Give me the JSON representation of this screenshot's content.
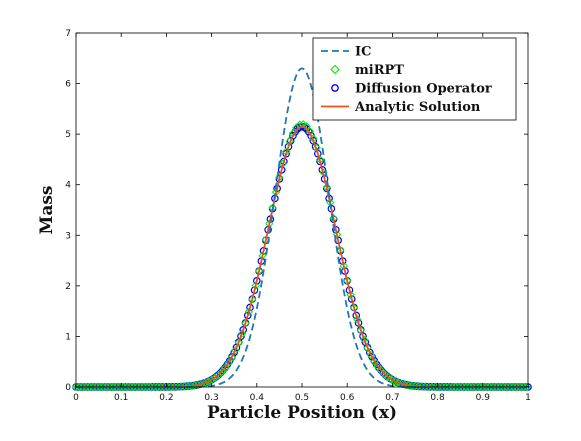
{
  "chart_data": {
    "type": "line",
    "xlabel": "Particle Position (x)",
    "ylabel": "Mass",
    "xlim": [
      0,
      1
    ],
    "ylim": [
      0,
      7
    ],
    "xticks": [
      "0",
      "0.1",
      "0.2",
      "0.3",
      "0.4",
      "0.5",
      "0.6",
      "0.7",
      "0.8",
      "0.9",
      "1"
    ],
    "yticks": [
      "0",
      "1",
      "2",
      "3",
      "4",
      "5",
      "6",
      "7"
    ],
    "grid": false,
    "legend_position": "top-right",
    "series": [
      {
        "name": "IC",
        "style": "dashed-line",
        "color": "#1f77b4",
        "peak_x": 0.5,
        "peak_y": 6.3,
        "x": [
          0.0,
          0.2,
          0.25,
          0.3,
          0.35,
          0.4,
          0.45,
          0.5,
          0.55,
          0.6,
          0.65,
          0.7,
          0.75,
          0.8,
          1.0
        ],
        "y": [
          0.0,
          0.0,
          0.001,
          0.03,
          0.3,
          1.55,
          4.3,
          6.3,
          4.3,
          1.55,
          0.3,
          0.03,
          0.001,
          0.0,
          0.0
        ]
      },
      {
        "name": "miRPT",
        "style": "diamond-markers",
        "color": "#00ee00",
        "peak_x": 0.5,
        "peak_y": 5.2,
        "x": [
          0.0,
          0.2,
          0.25,
          0.3,
          0.35,
          0.4,
          0.45,
          0.5,
          0.55,
          0.6,
          0.65,
          0.7,
          0.75,
          0.8,
          1.0
        ],
        "y": [
          0.0,
          0.0,
          0.02,
          0.12,
          0.65,
          2.1,
          4.2,
          5.2,
          4.2,
          2.1,
          0.65,
          0.12,
          0.02,
          0.0,
          0.0
        ]
      },
      {
        "name": "Diffusion Operator",
        "style": "circle-markers",
        "color": "#0000ee",
        "peak_x": 0.5,
        "peak_y": 5.15,
        "x": [
          0.0,
          0.2,
          0.25,
          0.3,
          0.35,
          0.4,
          0.45,
          0.5,
          0.55,
          0.6,
          0.65,
          0.7,
          0.75,
          0.8,
          1.0
        ],
        "y": [
          0.0,
          0.0,
          0.02,
          0.12,
          0.65,
          2.1,
          4.15,
          5.15,
          4.15,
          2.1,
          0.65,
          0.12,
          0.02,
          0.0,
          0.0
        ]
      },
      {
        "name": "Analytic Solution",
        "style": "solid-line",
        "color": "#e8501e",
        "peak_x": 0.5,
        "peak_y": 5.15,
        "x": [
          0.0,
          0.2,
          0.25,
          0.3,
          0.35,
          0.4,
          0.45,
          0.5,
          0.55,
          0.6,
          0.65,
          0.7,
          0.75,
          0.8,
          1.0
        ],
        "y": [
          0.0,
          0.0,
          0.02,
          0.12,
          0.65,
          2.1,
          4.15,
          5.15,
          4.15,
          2.1,
          0.65,
          0.12,
          0.02,
          0.0,
          0.0
        ]
      }
    ]
  }
}
